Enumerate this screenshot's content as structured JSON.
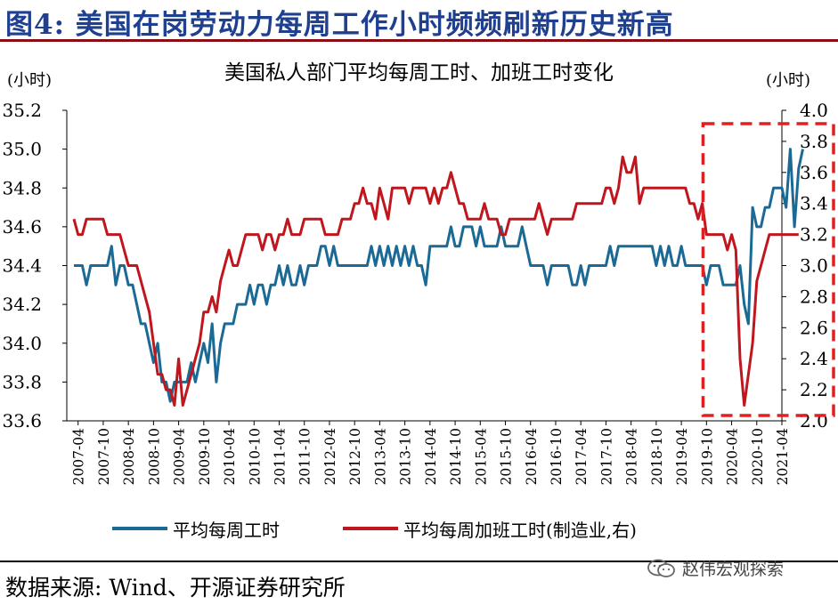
{
  "figure": {
    "title": "图4:  美国在岗劳动力每周工作小时频频刷新历史新高"
  },
  "colors": {
    "hours": "#1b6a96",
    "overtime": "#c0161e",
    "highlight": "#e02020",
    "title_blue": "#1f3f8f"
  },
  "chart_data": {
    "type": "line",
    "title": "美国私人部门平均每周工时、加班工时变化",
    "ylabel_left": "(小时)",
    "ylabel_right": "(小时)",
    "ylim_left": [
      33.6,
      35.2
    ],
    "ylim_right": [
      2.0,
      4.0
    ],
    "yticks_left": [
      "35.2",
      "35.0",
      "34.8",
      "34.6",
      "34.4",
      "34.2",
      "34.0",
      "33.8",
      "33.6"
    ],
    "yticks_right": [
      "4.0",
      "3.8",
      "3.6",
      "3.4",
      "3.2",
      "3.0",
      "2.8",
      "2.6",
      "2.4",
      "2.2",
      "2.0"
    ],
    "x_start": "2007-03",
    "x_end": "2021-04",
    "xticks": [
      "2007-04",
      "2007-10",
      "2008-04",
      "2008-10",
      "2009-04",
      "2009-10",
      "2010-04",
      "2010-10",
      "2011-04",
      "2011-10",
      "2012-04",
      "2012-10",
      "2013-04",
      "2013-10",
      "2014-04",
      "2014-10",
      "2015-04",
      "2015-10",
      "2016-04",
      "2016-10",
      "2017-04",
      "2017-10",
      "2018-04",
      "2018-10",
      "2019-04",
      "2019-10",
      "2020-04",
      "2020-10",
      "2021-04"
    ],
    "highlight_window": {
      "from": "2020-01",
      "to": "2021-04"
    },
    "series": [
      {
        "name": "平均每周工时",
        "axis": "left",
        "values": [
          34.4,
          34.4,
          34.4,
          34.3,
          34.4,
          34.4,
          34.4,
          34.4,
          34.4,
          34.5,
          34.3,
          34.4,
          34.4,
          34.3,
          34.3,
          34.2,
          34.1,
          34.1,
          34.0,
          33.9,
          34.0,
          33.8,
          33.8,
          33.7,
          33.8,
          33.8,
          33.8,
          33.8,
          33.9,
          33.8,
          33.9,
          34.0,
          33.9,
          34.1,
          33.8,
          34.0,
          34.1,
          34.1,
          34.1,
          34.2,
          34.2,
          34.2,
          34.3,
          34.2,
          34.3,
          34.3,
          34.2,
          34.3,
          34.3,
          34.4,
          34.3,
          34.4,
          34.3,
          34.3,
          34.4,
          34.3,
          34.4,
          34.4,
          34.4,
          34.5,
          34.5,
          34.4,
          34.5,
          34.4,
          34.4,
          34.4,
          34.4,
          34.4,
          34.4,
          34.4,
          34.4,
          34.5,
          34.4,
          34.5,
          34.4,
          34.5,
          34.4,
          34.5,
          34.4,
          34.5,
          34.4,
          34.5,
          34.4,
          34.4,
          34.3,
          34.5,
          34.5,
          34.5,
          34.5,
          34.5,
          34.6,
          34.5,
          34.5,
          34.6,
          34.6,
          34.6,
          34.5,
          34.6,
          34.5,
          34.5,
          34.5,
          34.5,
          34.6,
          34.5,
          34.5,
          34.5,
          34.5,
          34.6,
          34.5,
          34.4,
          34.4,
          34.4,
          34.4,
          34.3,
          34.4,
          34.4,
          34.4,
          34.4,
          34.4,
          34.3,
          34.3,
          34.4,
          34.3,
          34.4,
          34.4,
          34.4,
          34.4,
          34.4,
          34.5,
          34.4,
          34.5,
          34.5,
          34.5,
          34.5,
          34.5,
          34.5,
          34.5,
          34.5,
          34.5,
          34.4,
          34.5,
          34.4,
          34.5,
          34.4,
          34.4,
          34.5,
          34.4,
          34.4,
          34.4,
          34.4,
          34.4,
          34.3,
          34.4,
          34.4,
          34.4,
          34.3,
          34.3,
          34.3,
          34.3,
          34.4,
          34.2,
          34.1,
          34.7,
          34.6,
          34.6,
          34.7,
          34.7,
          34.8,
          34.8,
          34.8,
          34.7,
          35.0,
          34.6,
          34.9,
          35.0
        ]
      },
      {
        "name": "平均每周加班工时(制造业,右)",
        "axis": "right",
        "values": [
          3.3,
          3.2,
          3.2,
          3.3,
          3.3,
          3.3,
          3.3,
          3.3,
          3.2,
          3.2,
          3.2,
          3.2,
          3.1,
          3.0,
          3.0,
          3.0,
          2.9,
          2.8,
          2.7,
          2.5,
          2.3,
          2.3,
          2.2,
          2.2,
          2.1,
          2.4,
          2.1,
          2.2,
          2.3,
          2.4,
          2.5,
          2.7,
          2.7,
          2.8,
          2.7,
          2.9,
          3.0,
          3.1,
          3.0,
          3.0,
          3.1,
          3.2,
          3.2,
          3.2,
          3.2,
          3.1,
          3.2,
          3.2,
          3.1,
          3.2,
          3.2,
          3.3,
          3.2,
          3.2,
          3.2,
          3.3,
          3.3,
          3.3,
          3.3,
          3.3,
          3.2,
          3.2,
          3.2,
          3.2,
          3.3,
          3.3,
          3.3,
          3.4,
          3.4,
          3.5,
          3.4,
          3.4,
          3.3,
          3.5,
          3.4,
          3.3,
          3.5,
          3.5,
          3.5,
          3.5,
          3.4,
          3.5,
          3.5,
          3.5,
          3.5,
          3.4,
          3.5,
          3.4,
          3.5,
          3.5,
          3.6,
          3.5,
          3.4,
          3.4,
          3.3,
          3.3,
          3.3,
          3.3,
          3.4,
          3.3,
          3.3,
          3.3,
          3.2,
          3.2,
          3.3,
          3.3,
          3.3,
          3.3,
          3.3,
          3.3,
          3.3,
          3.4,
          3.3,
          3.2,
          3.3,
          3.3,
          3.3,
          3.3,
          3.3,
          3.3,
          3.4,
          3.4,
          3.4,
          3.4,
          3.4,
          3.4,
          3.4,
          3.5,
          3.5,
          3.4,
          3.5,
          3.7,
          3.6,
          3.6,
          3.7,
          3.4,
          3.5,
          3.5,
          3.5,
          3.5,
          3.5,
          3.5,
          3.5,
          3.5,
          3.5,
          3.5,
          3.5,
          3.4,
          3.4,
          3.3,
          3.4,
          3.2,
          3.2,
          3.2,
          3.2,
          3.2,
          3.1,
          3.2,
          3.1,
          2.4,
          2.1,
          2.3,
          2.5,
          2.9,
          3.0,
          3.1,
          3.2,
          3.2,
          3.2,
          3.2,
          3.2,
          3.2,
          3.2,
          3.2
        ]
      }
    ]
  },
  "legend": {
    "hours_label": "平均每周工时",
    "overtime_label": "平均每周加班工时(制造业,右)"
  },
  "footer": {
    "source": "数据来源:  Wind、开源证券研究所",
    "brand": "赵伟宏观探索",
    "brand_icon": "wechat-icon"
  }
}
